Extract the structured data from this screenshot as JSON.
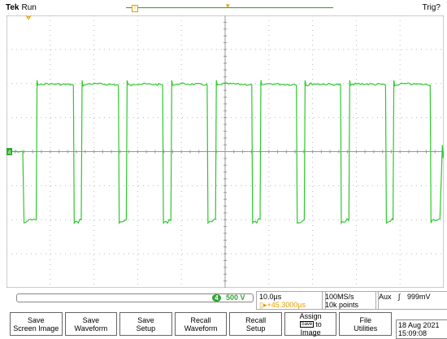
{
  "header": {
    "brand": "Tek",
    "state": "Run",
    "trigger_status": "Trig?"
  },
  "markers": {
    "ground_label": "4",
    "trigger_label": "T"
  },
  "colors": {
    "trace": "#2ec82e",
    "accent": "#e0a000",
    "grid": "#bbbbbb"
  },
  "status": {
    "channel_num": "4",
    "channel_scale": "500 V",
    "time_div": "10.0µs",
    "delay": "▯▸+45.3000µs",
    "sample_rate": "100MS/s",
    "record_len": "10k points",
    "trigger_source": "Aux",
    "trigger_slope": "∫",
    "trigger_level": "999mV"
  },
  "menu": [
    {
      "line1": "Save",
      "line2": "Screen Image"
    },
    {
      "line1": "Save",
      "line2": "Waveform"
    },
    {
      "line1": "Save",
      "line2": "Setup"
    },
    {
      "line1": "Recall",
      "line2": "Waveform"
    },
    {
      "line1": "Recall",
      "line2": "Setup"
    },
    {
      "line1": "Assign",
      "icon": "Save",
      "line2": "to",
      "line3": "Image"
    },
    {
      "line1": "File",
      "line2": "Utilities"
    }
  ],
  "datetime": {
    "date": "18 Aug 2021",
    "time": "15:09:08"
  },
  "waveform": {
    "type": "square",
    "x_units": "div",
    "y_units": "div",
    "pulses": [
      {
        "rise": 0.68,
        "fall": 1.53
      },
      {
        "rise": 1.71,
        "fall": 2.56
      },
      {
        "rise": 2.74,
        "fall": 3.57
      },
      {
        "rise": 3.76,
        "fall": 4.59
      },
      {
        "rise": 4.78,
        "fall": 5.61
      },
      {
        "rise": 5.8,
        "fall": 6.63
      },
      {
        "rise": 6.81,
        "fall": 7.64
      },
      {
        "rise": 7.83,
        "fall": 8.67
      },
      {
        "rise": 8.84,
        "fall": 9.69
      }
    ],
    "high_level": 2.0,
    "low_level": -2.0,
    "idle_level": 0.0,
    "start_low_at": 0.4,
    "end_at": 10.0
  }
}
